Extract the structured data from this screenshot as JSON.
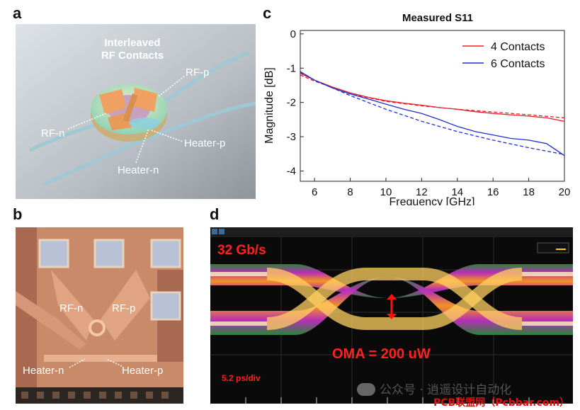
{
  "panels": {
    "a": {
      "letter": "a",
      "title_line1": "Interleaved",
      "title_line2": "RF Contacts",
      "labels": {
        "rf_p": "RF-p",
        "rf_n": "RF-n",
        "heater_p": "Heater-p",
        "heater_n": "Heater-n"
      }
    },
    "b": {
      "letter": "b",
      "labels": {
        "rf_n": "RF-n",
        "rf_p": "RF-p",
        "heater_n": "Heater-n",
        "heater_p": "Heater-p"
      }
    },
    "c": {
      "letter": "c"
    },
    "d": {
      "letter": "d",
      "rate": "32 Gb/s",
      "oma": "OMA = 200 uW",
      "timescale": "5.2 ps/div"
    }
  },
  "chart_data": {
    "type": "line",
    "title": "Measured S11",
    "xlabel": "Frequency [GHz]",
    "ylabel": "Magnitude [dB]",
    "xlim": [
      5.2,
      20
    ],
    "ylim": [
      -4.3,
      0.1
    ],
    "xticks": [
      6,
      8,
      10,
      12,
      14,
      16,
      18,
      20
    ],
    "yticks": [
      0,
      -1,
      -2,
      -3,
      -4
    ],
    "legend_position": "top-right",
    "series": [
      {
        "name": "4 Contacts",
        "color": "#e8202a",
        "style": "solid",
        "x": [
          5.2,
          6,
          7,
          8,
          9,
          10,
          11,
          12,
          13,
          14,
          15,
          16,
          17,
          18,
          19,
          20
        ],
        "y": [
          -1.15,
          -1.35,
          -1.55,
          -1.72,
          -1.85,
          -1.95,
          -2.02,
          -2.08,
          -2.15,
          -2.2,
          -2.27,
          -2.32,
          -2.36,
          -2.4,
          -2.45,
          -2.55
        ]
      },
      {
        "name": "",
        "color": "#e8202a",
        "style": "dashed",
        "x": [
          5.2,
          6,
          8,
          10,
          12,
          14,
          16,
          18,
          20
        ],
        "y": [
          -1.2,
          -1.38,
          -1.75,
          -1.97,
          -2.1,
          -2.2,
          -2.28,
          -2.36,
          -2.45
        ]
      },
      {
        "name": "6 Contacts",
        "color": "#2030d0",
        "style": "solid",
        "x": [
          5.2,
          6,
          7,
          8,
          9,
          10,
          11,
          12,
          13,
          14,
          15,
          16,
          17,
          18,
          19,
          20
        ],
        "y": [
          -1.1,
          -1.35,
          -1.58,
          -1.75,
          -1.9,
          -2.05,
          -2.2,
          -2.32,
          -2.5,
          -2.7,
          -2.85,
          -2.95,
          -3.05,
          -3.1,
          -3.2,
          -3.55
        ]
      },
      {
        "name": "",
        "color": "#2030d0",
        "style": "dashed",
        "x": [
          5.2,
          6,
          8,
          10,
          12,
          14,
          16,
          18,
          20
        ],
        "y": [
          -1.12,
          -1.35,
          -1.8,
          -2.2,
          -2.55,
          -2.85,
          -3.1,
          -3.32,
          -3.52
        ]
      }
    ]
  },
  "watermark": {
    "wechat": "公众号 · 逍遥设计自动化",
    "site": "PCB联盟网（Pcbbar.com）"
  }
}
